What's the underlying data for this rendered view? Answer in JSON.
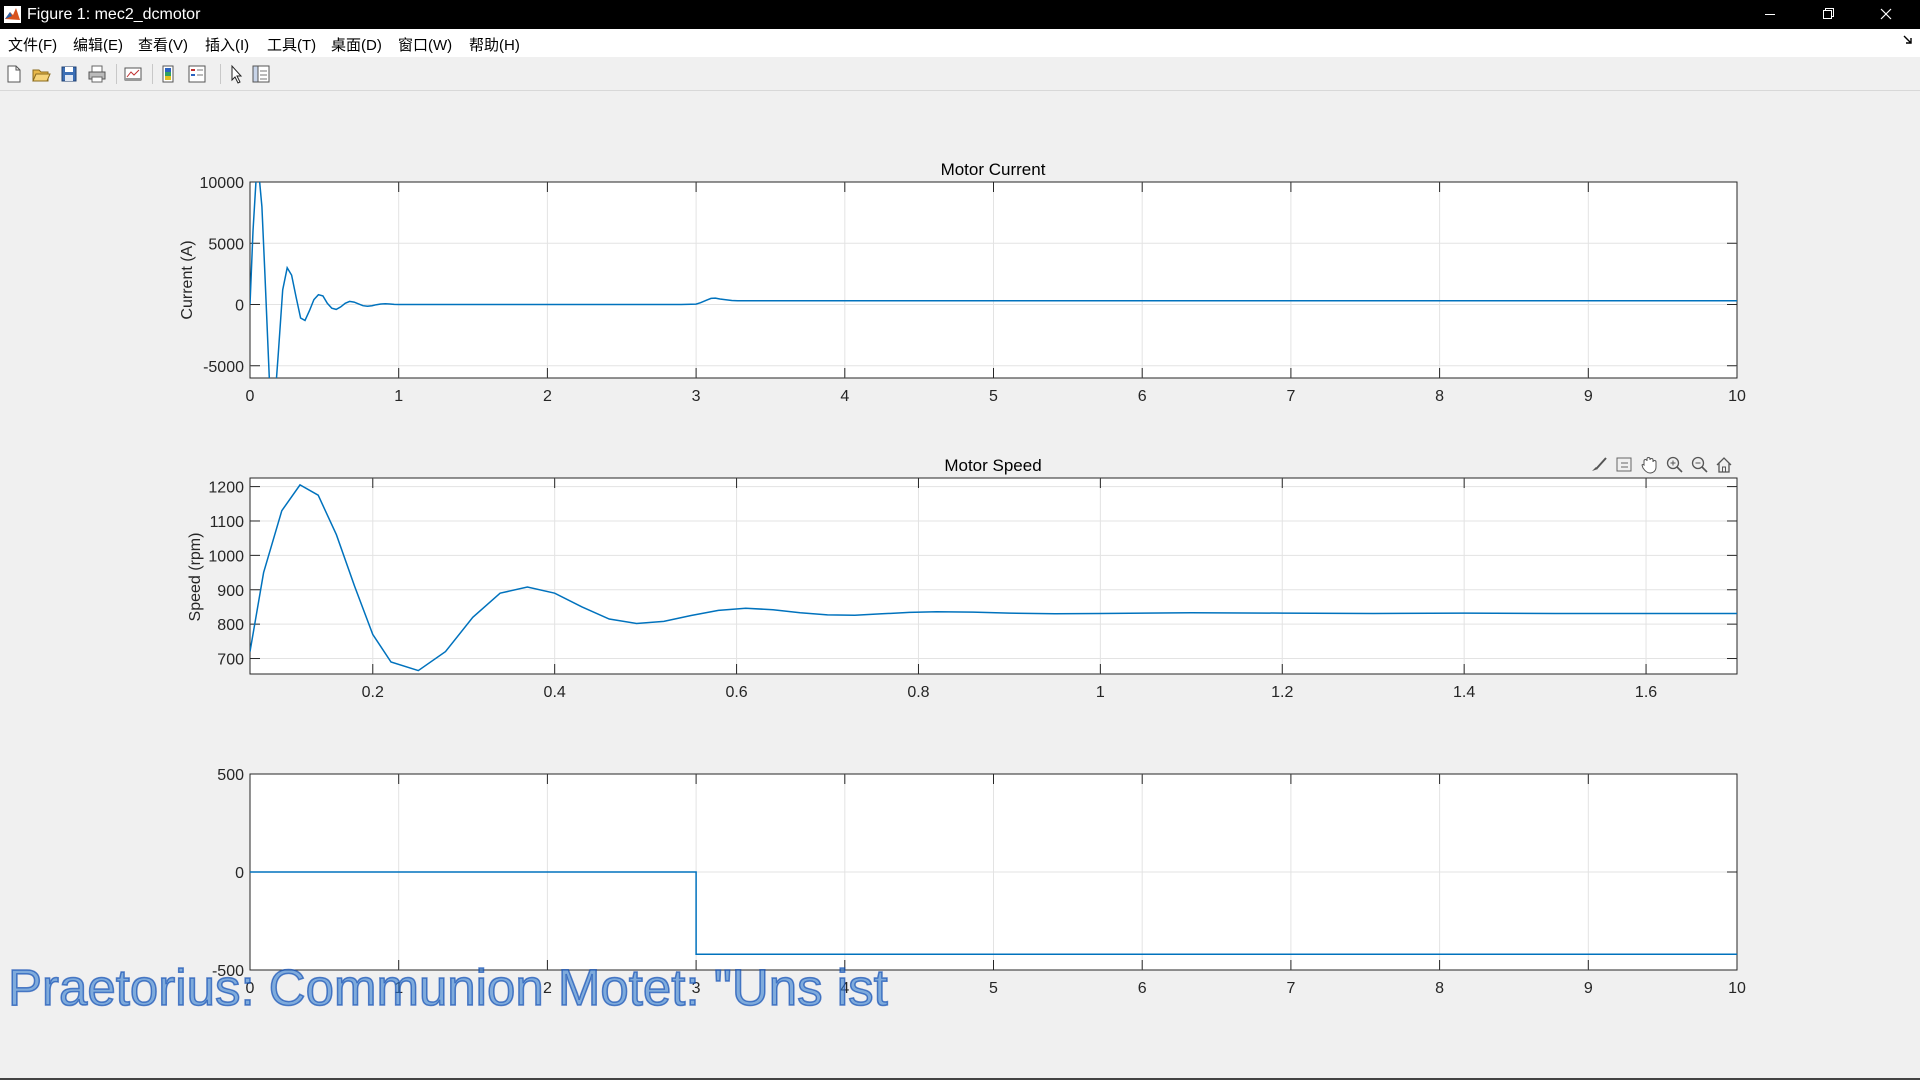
{
  "window": {
    "title": "Figure 1: mec2_dcmotor",
    "controls": {
      "minimize": "minimize-icon",
      "restore": "restore-icon",
      "close": "close-icon"
    }
  },
  "menu": [
    {
      "label": "文件(F)"
    },
    {
      "label": "编辑(E)"
    },
    {
      "label": "查看(V)"
    },
    {
      "label": "插入(I)"
    },
    {
      "label": "工具(T)"
    },
    {
      "label": "桌面(D)"
    },
    {
      "label": "窗口(W)"
    },
    {
      "label": "帮助(H)"
    }
  ],
  "toolbar": [
    "new-figure-icon",
    "open-icon",
    "save-icon",
    "print-icon",
    "link-plot-icon",
    "colorbar-icon",
    "legend-icon",
    "edit-plot-icon",
    "property-inspector-icon"
  ],
  "axes_toolbar": [
    "brush-icon",
    "datatip-icon",
    "pan-icon",
    "zoom-in-icon",
    "zoom-out-icon",
    "home-icon"
  ],
  "watermark": "Praetorius: Communion Motet: \"Uns ist",
  "colors": {
    "line": "#0072bd",
    "titlebar": "#000000",
    "figure_bg": "#f0f0f0"
  },
  "chart_data": [
    {
      "type": "line",
      "title": "Motor Current",
      "xlabel": "",
      "ylabel": "Current (A)",
      "xlim": [
        0,
        10
      ],
      "ylim": [
        -6000,
        10000
      ],
      "xticks": [
        0,
        1,
        2,
        3,
        4,
        5,
        6,
        7,
        8,
        9,
        10
      ],
      "xtick_labels": [
        "0",
        "1",
        "2",
        "3",
        "4",
        "5",
        "6",
        "7",
        "8",
        "9",
        "10"
      ],
      "yticks": [
        -5000,
        0,
        5000,
        10000
      ],
      "ytick_labels": [
        "-5000",
        "0",
        "5000",
        "10000"
      ],
      "grid": true,
      "x": [
        0,
        0.02,
        0.05,
        0.08,
        0.1,
        0.13,
        0.16,
        0.19,
        0.22,
        0.25,
        0.28,
        0.31,
        0.34,
        0.37,
        0.4,
        0.43,
        0.46,
        0.49,
        0.52,
        0.55,
        0.58,
        0.61,
        0.64,
        0.67,
        0.7,
        0.73,
        0.76,
        0.79,
        0.82,
        0.85,
        0.88,
        0.91,
        0.94,
        0.97,
        1.0,
        1.1,
        1.2,
        1.4,
        1.6,
        2.0,
        2.5,
        2.9,
        3.0,
        3.03,
        3.07,
        3.1,
        3.13,
        3.16,
        3.2,
        3.24,
        3.28,
        3.35,
        3.45,
        3.6,
        3.8,
        4.0,
        5.0,
        6.0,
        7.0,
        8.0,
        9.0,
        10.0
      ],
      "y": [
        0,
        6000,
        12000,
        8000,
        2500,
        -6000,
        -9000,
        -4000,
        1200,
        3000,
        2400,
        600,
        -1100,
        -1300,
        -500,
        400,
        800,
        700,
        100,
        -300,
        -400,
        -200,
        100,
        250,
        200,
        50,
        -100,
        -150,
        -100,
        -20,
        40,
        60,
        40,
        10,
        0,
        0,
        0,
        0,
        0,
        0,
        0,
        0,
        30,
        150,
        350,
        500,
        520,
        450,
        380,
        330,
        310,
        300,
        300,
        300,
        300,
        300,
        300,
        300,
        300,
        300,
        300,
        300
      ]
    },
    {
      "type": "line",
      "title": "Motor Speed",
      "xlabel": "",
      "ylabel": "Speed (rpm)",
      "xlim": [
        0.065,
        1.7
      ],
      "ylim": [
        655,
        1225
      ],
      "xticks": [
        0.2,
        0.4,
        0.6,
        0.8,
        1,
        1.2,
        1.4,
        1.6
      ],
      "xtick_labels": [
        "0.2",
        "0.4",
        "0.6",
        "0.8",
        "1",
        "1.2",
        "1.4",
        "1.6"
      ],
      "yticks": [
        700,
        800,
        900,
        1000,
        1100,
        1200
      ],
      "ytick_labels": [
        "700",
        "800",
        "900",
        "1000",
        "1100",
        "1200"
      ],
      "grid": true,
      "x": [
        0.065,
        0.08,
        0.1,
        0.12,
        0.14,
        0.16,
        0.18,
        0.2,
        0.22,
        0.25,
        0.28,
        0.31,
        0.34,
        0.37,
        0.4,
        0.43,
        0.46,
        0.49,
        0.52,
        0.55,
        0.58,
        0.61,
        0.64,
        0.67,
        0.7,
        0.73,
        0.76,
        0.79,
        0.82,
        0.86,
        0.9,
        0.95,
        1.0,
        1.1,
        1.2,
        1.3,
        1.4,
        1.5,
        1.6,
        1.7
      ],
      "y": [
        720,
        950,
        1130,
        1205,
        1175,
        1060,
        910,
        770,
        690,
        665,
        720,
        820,
        890,
        908,
        890,
        850,
        815,
        802,
        808,
        825,
        840,
        846,
        842,
        833,
        827,
        826,
        830,
        834,
        836,
        835,
        832,
        830,
        831,
        833,
        832,
        831,
        832,
        831,
        831,
        831
      ]
    },
    {
      "type": "line",
      "title": "",
      "xlabel": "",
      "ylabel": "",
      "xlim": [
        0,
        10
      ],
      "ylim": [
        -500,
        500
      ],
      "xticks": [
        0,
        1,
        2,
        3,
        4,
        5,
        6,
        7,
        8,
        9,
        10
      ],
      "xtick_labels": [
        "0",
        "1",
        "2",
        "3",
        "4",
        "5",
        "6",
        "7",
        "8",
        "9",
        "10"
      ],
      "yticks": [
        -500,
        0,
        500
      ],
      "ytick_labels": [
        "-500",
        "0",
        "500"
      ],
      "grid": true,
      "x": [
        0,
        3,
        3,
        10
      ],
      "y": [
        0,
        0,
        -420,
        -420
      ]
    }
  ]
}
